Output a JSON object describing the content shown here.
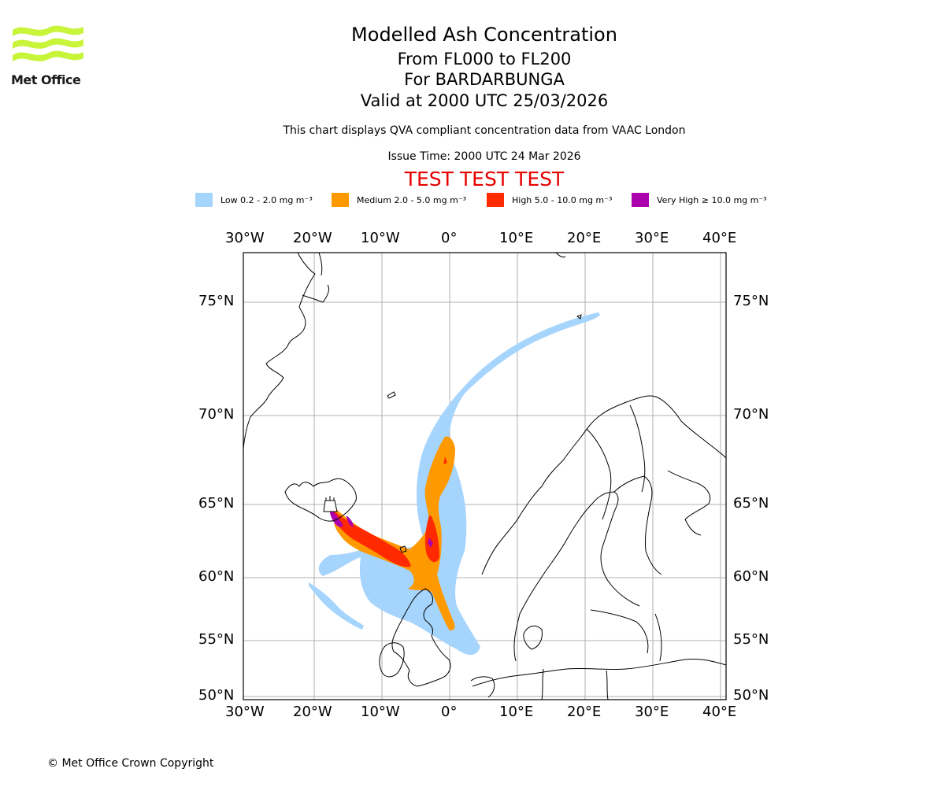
{
  "logo": {
    "text": "Met Office",
    "color": "#c8f53a"
  },
  "header": {
    "title": "Modelled Ash Concentration",
    "levels": "From FL000 to FL200",
    "volcano": "For BARDARBUNGA",
    "valid": "Valid at 2000 UTC 25/03/2026",
    "description": "This chart displays QVA compliant concentration data from VAAC London",
    "issue_time": "Issue Time: 2000 UTC 24 Mar 2026",
    "test_banner": "TEST TEST TEST"
  },
  "legend": [
    {
      "label": "Low 0.2 - 2.0 mg m⁻³",
      "color": "#a5d4fc"
    },
    {
      "label": "Medium 2.0 - 5.0 mg m⁻³",
      "color": "#ff9900"
    },
    {
      "label": "High 5.0 - 10.0 mg m⁻³",
      "color": "#ff2a00"
    },
    {
      "label": "Very High ≥ 10.0 mg m⁻³",
      "color": "#ad00ad"
    }
  ],
  "map": {
    "lon_ticks": [
      "30°W",
      "20°W",
      "10°W",
      "0°",
      "10°E",
      "20°E",
      "30°E",
      "40°E"
    ],
    "lat_ticks": [
      "75°N",
      "70°N",
      "65°N",
      "60°N",
      "55°N",
      "50°N"
    ],
    "colors": {
      "grid": "#b0b0b0",
      "coast": "#000000"
    }
  },
  "footer": {
    "copyright": "© Met Office Crown Copyright"
  }
}
